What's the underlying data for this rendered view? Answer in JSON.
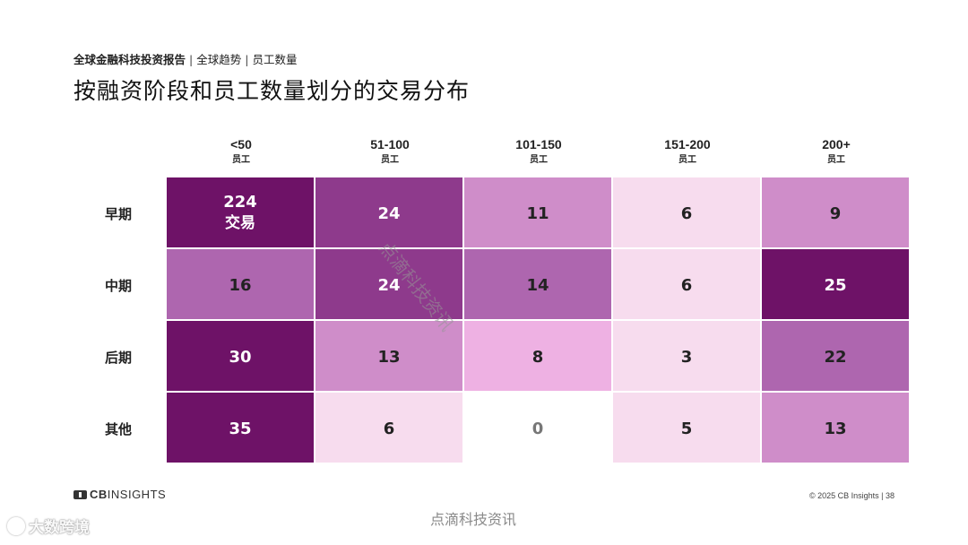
{
  "header": {
    "crumb_bold": "全球金融科技投资报告",
    "crumb_sep": "|",
    "crumb_2": "全球趋势",
    "crumb_3": "员工数量",
    "title": "按融资阶段和员工数量划分的交易分布"
  },
  "chart_data": {
    "type": "heatmap",
    "columns": [
      {
        "label": "<50",
        "sub": "员工"
      },
      {
        "label": "51-100",
        "sub": "员工"
      },
      {
        "label": "101-150",
        "sub": "员工"
      },
      {
        "label": "151-200",
        "sub": "员工"
      },
      {
        "label": "200+",
        "sub": "员工"
      }
    ],
    "rows": [
      "早期",
      "中期",
      "后期",
      "其他"
    ],
    "values": [
      [
        224,
        24,
        11,
        6,
        9
      ],
      [
        16,
        24,
        14,
        6,
        25
      ],
      [
        30,
        13,
        8,
        3,
        22
      ],
      [
        35,
        6,
        0,
        5,
        13
      ]
    ],
    "first_cell_suffix": "交易",
    "cell_colors": [
      [
        "#6e1267",
        "#8e3a8c",
        "#cf8dc9",
        "#f7dcee",
        "#cf8dc9"
      ],
      [
        "#ae66af",
        "#8e3a8c",
        "#ae66af",
        "#f7dcee",
        "#6e1267"
      ],
      [
        "#6e1267",
        "#cf8dc9",
        "#eeb1e3",
        "#f7dcee",
        "#ae66af"
      ],
      [
        "#6e1267",
        "#f7dcee",
        "#ffffff",
        "#f7dcee",
        "#cf8dc9"
      ]
    ],
    "text_colors": [
      [
        "#ffffff",
        "#ffffff",
        "#222222",
        "#222222",
        "#222222"
      ],
      [
        "#222222",
        "#ffffff",
        "#222222",
        "#222222",
        "#ffffff"
      ],
      [
        "#ffffff",
        "#222222",
        "#222222",
        "#222222",
        "#222222"
      ],
      [
        "#ffffff",
        "#222222",
        "#777777",
        "#222222",
        "#222222"
      ]
    ]
  },
  "footer": {
    "logo_cb": "CB",
    "logo_rest": "INSIGHTS",
    "copyright": "© 2025 CB Insights | 38"
  },
  "watermarks": {
    "diagonal": "点滴科技资讯",
    "bottom": "点滴科技资讯",
    "corner": "大数跨境"
  }
}
